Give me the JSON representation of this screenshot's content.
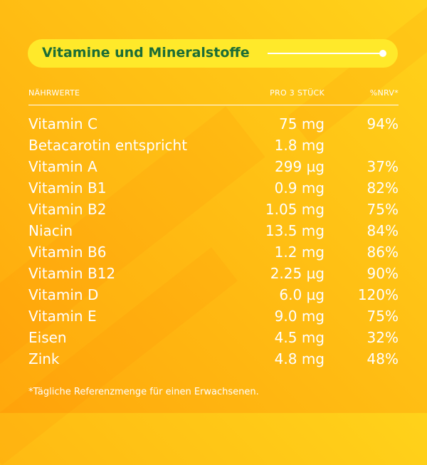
{
  "title": "Vitamine und Mineralstoffe",
  "table": {
    "headers": {
      "nutrient": "NÄHRWERTE",
      "amount": "PRO 3 STÜCK",
      "nrv": "%NRV*"
    },
    "rows": [
      {
        "name": "Vitamin C",
        "amount": "75 mg",
        "nrv": "94%"
      },
      {
        "name": "Betacarotin entspricht",
        "amount": "1.8 mg",
        "nrv": ""
      },
      {
        "name": "Vitamin A",
        "amount": "299 µg",
        "nrv": "37%"
      },
      {
        "name": "Vitamin B1",
        "amount": "0.9 mg",
        "nrv": "82%"
      },
      {
        "name": "Vitamin B2",
        "amount": "1.05 mg",
        "nrv": "75%"
      },
      {
        "name": "Niacin",
        "amount": "13.5 mg",
        "nrv": "84%"
      },
      {
        "name": "Vitamin B6",
        "amount": "1.2 mg",
        "nrv": "86%"
      },
      {
        "name": "Vitamin B12",
        "amount": "2.25 µg",
        "nrv": "90%"
      },
      {
        "name": "Vitamin D",
        "amount": "6.0 µg",
        "nrv": "120%"
      },
      {
        "name": "Vitamin E",
        "amount": "9.0 mg",
        "nrv": "75%"
      },
      {
        "name": "Eisen",
        "amount": "4.5 mg",
        "nrv": "32%"
      },
      {
        "name": "Zink",
        "amount": "4.8 mg",
        "nrv": "48%"
      }
    ]
  },
  "footnote": "*Tägliche Referenzmenge für einen Erwachsenen.",
  "colors": {
    "background_light": "#ffd21a",
    "background_dark": "#ffa80c",
    "title_pill": "#ffe92a",
    "title_text": "#1c6d36",
    "text": "#ffffff"
  }
}
